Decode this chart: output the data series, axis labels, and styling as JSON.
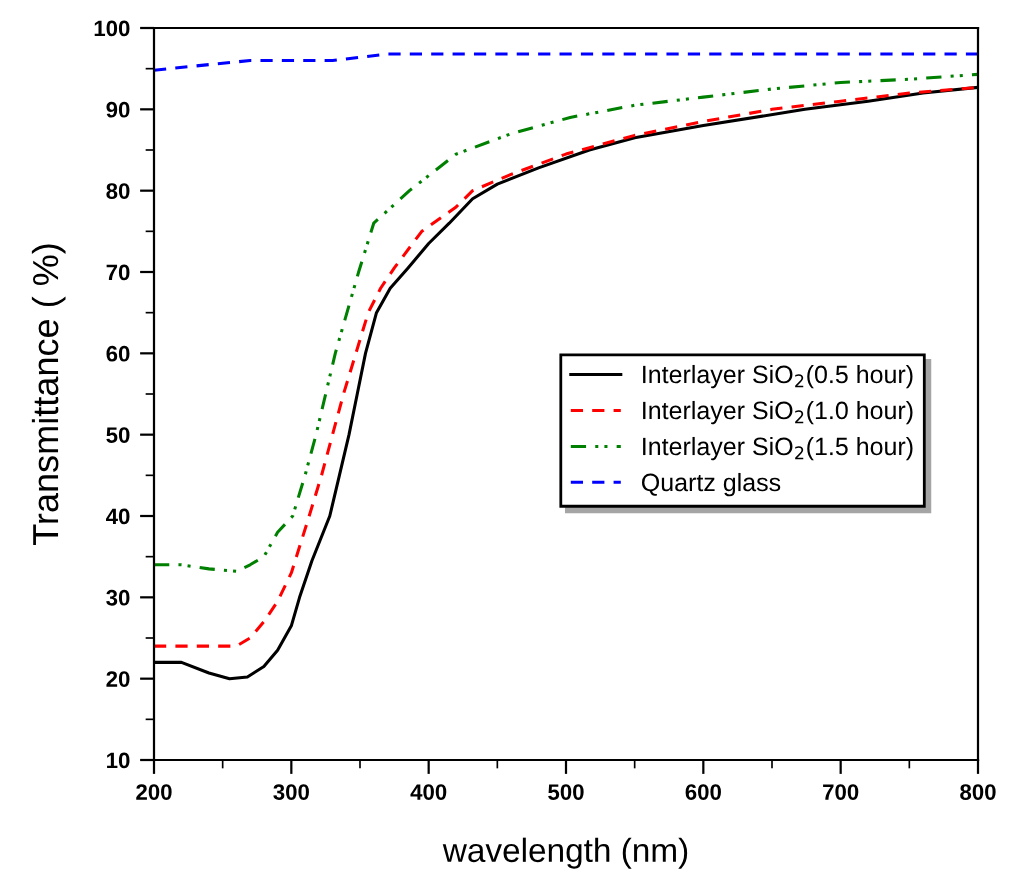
{
  "chart_data": {
    "type": "line",
    "xlabel": "wavelength (nm)",
    "ylabel": "Transmittance ( %)",
    "xlim": [
      200,
      800
    ],
    "ylim": [
      10,
      100
    ],
    "xticks": [
      200,
      300,
      400,
      500,
      600,
      700,
      800,
      {
        "value": 250,
        "label": null
      },
      {
        "value": 350,
        "label": null
      },
      {
        "value": 450,
        "label": null
      },
      {
        "value": 550,
        "label": null
      },
      {
        "value": 650,
        "label": null
      },
      {
        "value": 750,
        "label": null
      }
    ],
    "yticks": [
      10,
      20,
      30,
      40,
      50,
      60,
      70,
      80,
      90,
      100,
      {
        "value": 15,
        "label": null
      },
      {
        "value": 25,
        "label": null
      },
      {
        "value": 35,
        "label": null
      },
      {
        "value": 45,
        "label": null
      },
      {
        "value": 55,
        "label": null
      },
      {
        "value": 65,
        "label": null
      },
      {
        "value": 75,
        "label": null
      },
      {
        "value": 85,
        "label": null
      },
      {
        "value": 95,
        "label": null
      }
    ],
    "grid": false,
    "legend": "right",
    "marker": "none",
    "series": [
      {
        "name": "Interlayer SiO$_{2}$(0.5 hour)",
        "color": "#000000",
        "line_style": "solid",
        "x": [
          200,
          220,
          240,
          255,
          268,
          280,
          290,
          300,
          306,
          315,
          328,
          335,
          342,
          348,
          354,
          362,
          372,
          385,
          400,
          415,
          432,
          450,
          480,
          517,
          550,
          600,
          674,
          720,
          760,
          800
        ],
        "values": [
          22,
          22,
          20.7,
          20,
          20.2,
          21.5,
          23.5,
          26.5,
          30,
          34.5,
          40,
          45,
          50,
          55,
          60,
          65,
          68,
          70.5,
          73.5,
          76,
          79,
          80.8,
          82.8,
          85,
          86.5,
          88,
          90,
          91,
          92,
          92.7
        ]
      },
      {
        "name": "Interlayer SiO$_{2}$(1.0 hour)",
        "color": "#ff0000",
        "line_style": "dashed",
        "x": [
          200,
          260,
          270,
          280,
          290,
          300,
          313,
          322,
          330,
          338,
          347,
          356,
          365,
          375,
          395,
          420,
          432,
          460,
          500,
          550,
          600,
          650,
          700,
          750,
          800
        ],
        "values": [
          24,
          24,
          25,
          27,
          29.5,
          33,
          40,
          45,
          50,
          55,
          60,
          65,
          68,
          70.5,
          75,
          78,
          80,
          82,
          84.5,
          86.8,
          88.5,
          90,
          91,
          92,
          92.7
        ]
      },
      {
        "name": "Interlayer SiO$_{2}$(1.5 hour)",
        "color": "#008000",
        "line_style": "dotted",
        "x": [
          200,
          220,
          240,
          260,
          270,
          280,
          290,
          301,
          310,
          318,
          332,
          349,
          360,
          386,
          420,
          460,
          503,
          550,
          600,
          650,
          700,
          750,
          800
        ],
        "values": [
          34,
          34,
          33.5,
          33.2,
          34,
          35,
          38,
          40,
          45,
          50,
          60,
          70,
          76,
          80,
          84.5,
          87,
          89,
          90.5,
          91.5,
          92.5,
          93.3,
          93.7,
          94.3
        ]
      },
      {
        "name": "Quartz glass",
        "color": "#0000ff",
        "line_style": "dashed",
        "x": [
          200,
          240,
          270,
          300,
          330,
          370,
          800
        ],
        "values": [
          94.8,
          95.5,
          96,
          96,
          96,
          96.8,
          96.8
        ]
      }
    ]
  }
}
